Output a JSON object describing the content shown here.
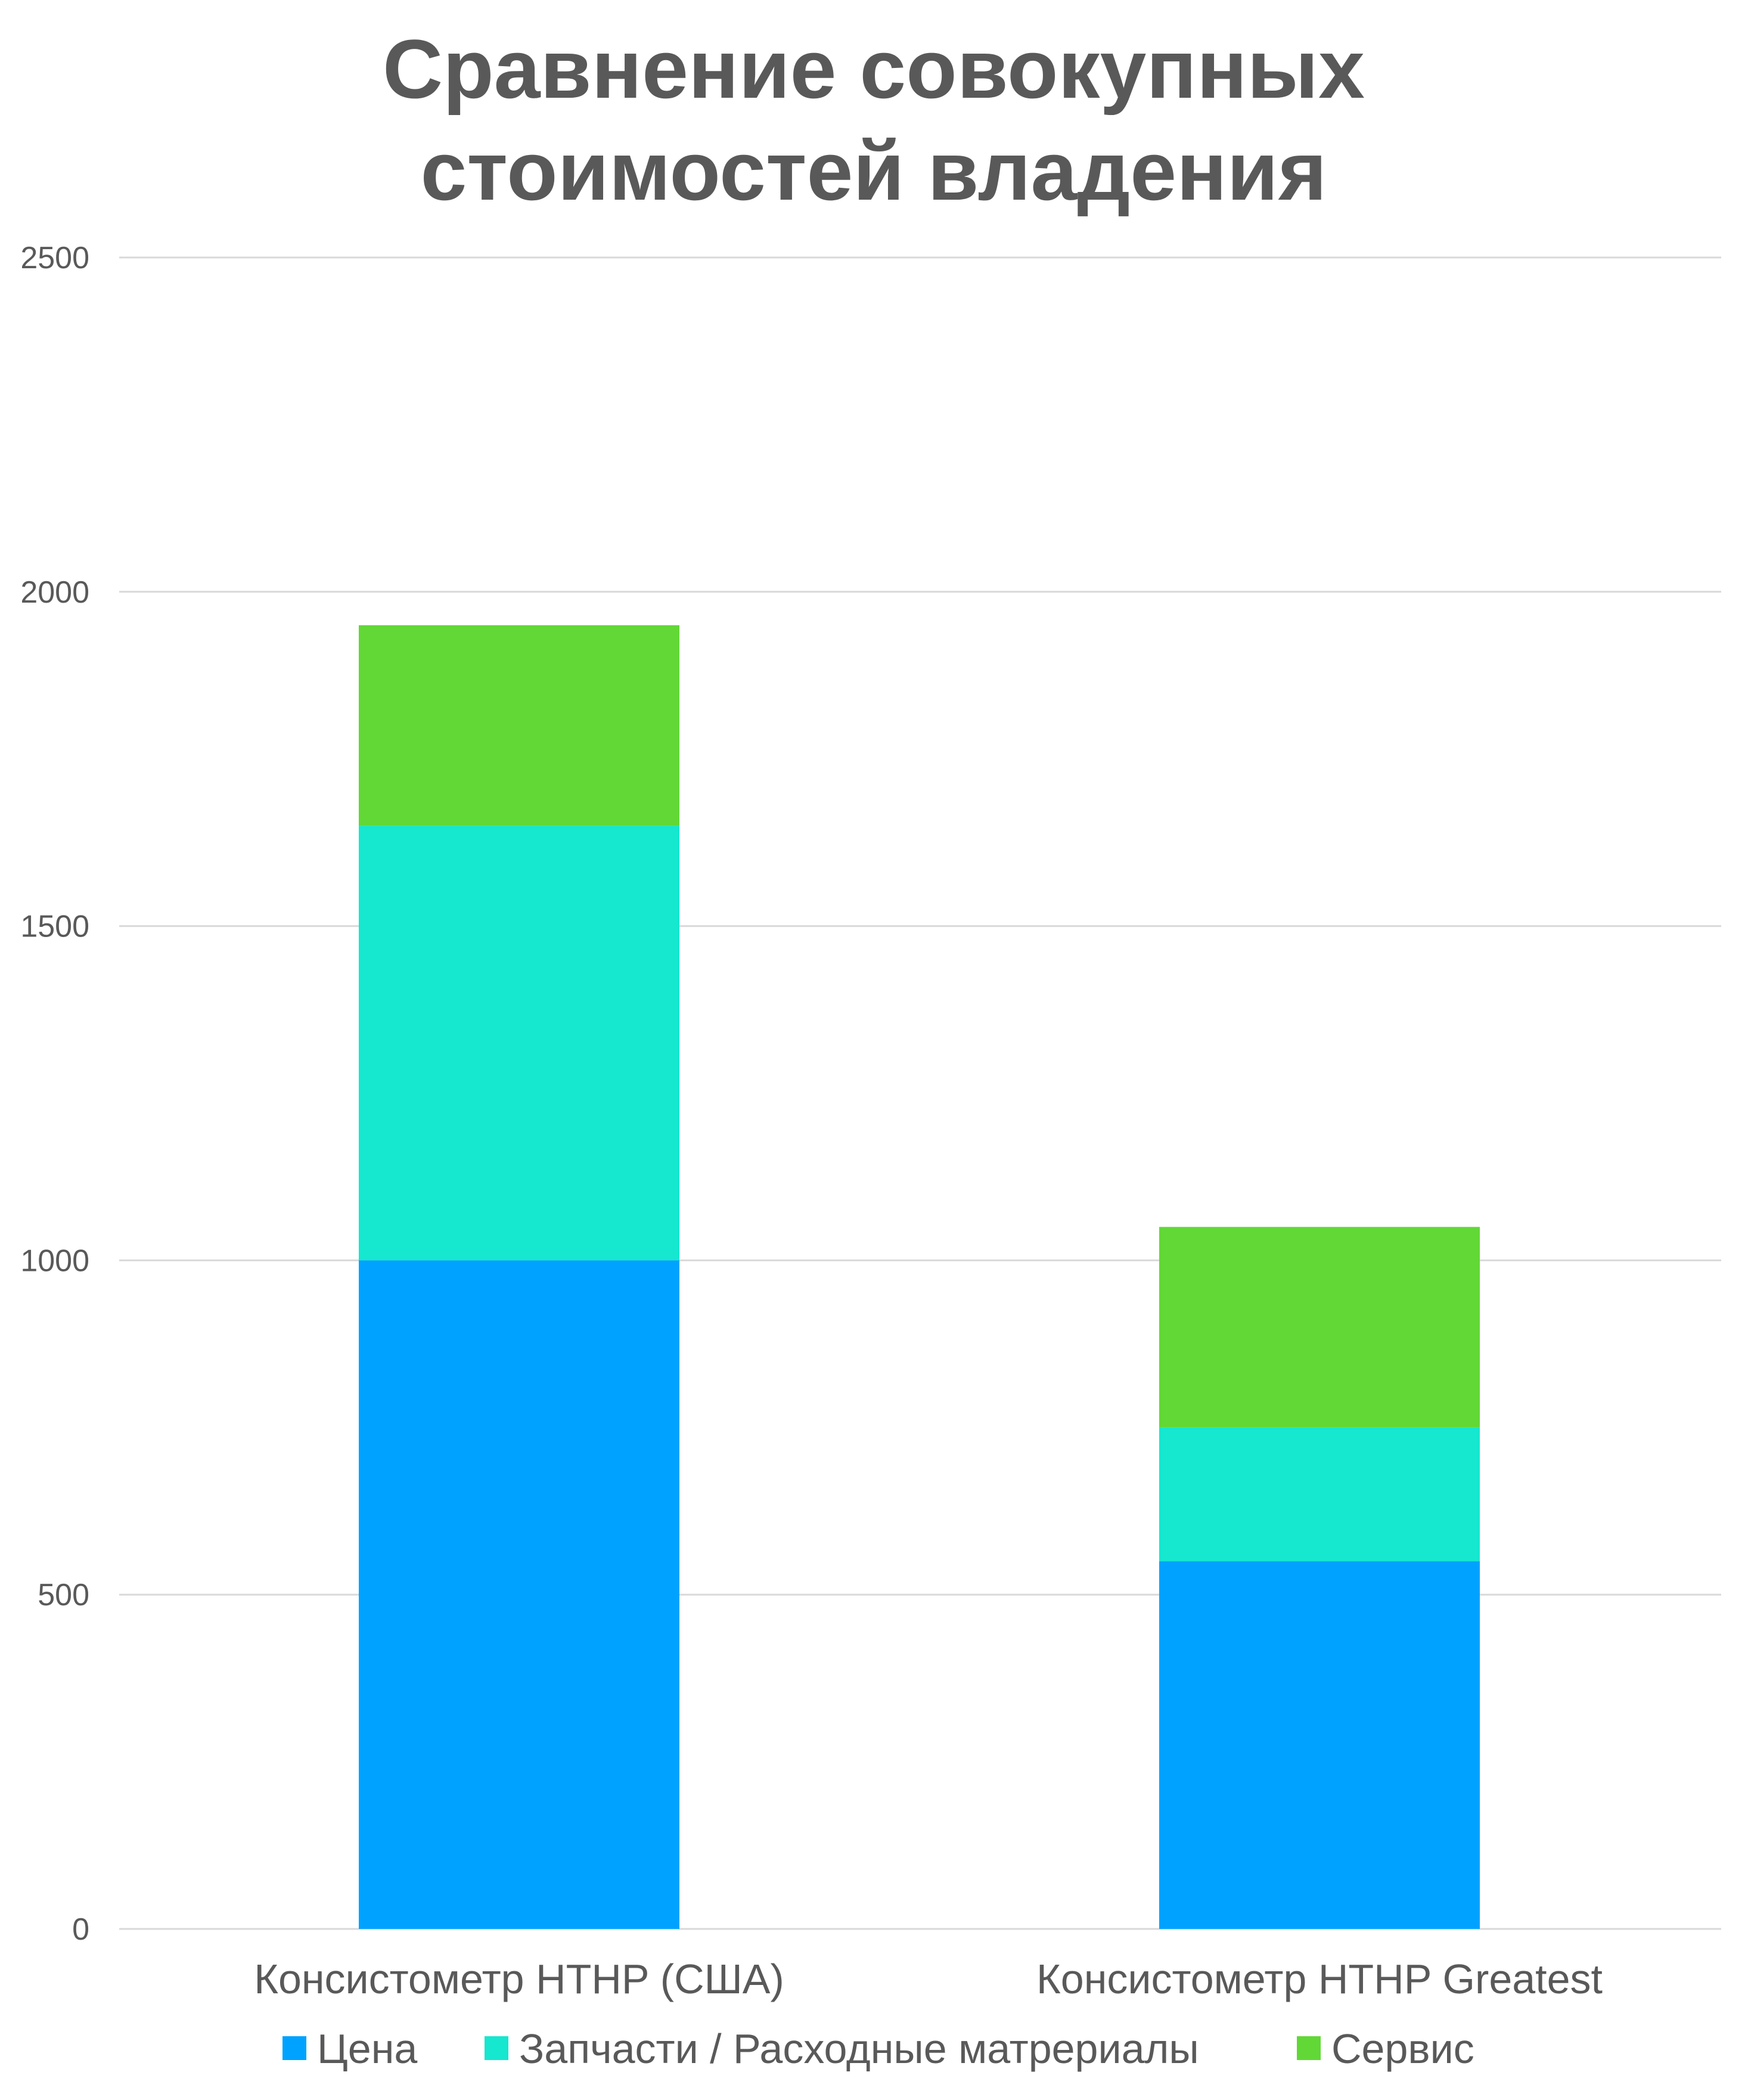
{
  "chart_data": {
    "type": "bar",
    "stacked": true,
    "title_lines": [
      "Сравнение совокупных",
      "стоимостей владения"
    ],
    "categories": [
      "Консистометр HTHP (США)",
      "Консистометр HTHP Greatest"
    ],
    "series": [
      {
        "name": "Цена",
        "values": [
          1000,
          550
        ],
        "color": "#00A2FF"
      },
      {
        "name": "Запчасти / Расходные матрериалы",
        "values": [
          650,
          200
        ],
        "color": "#16E7CF"
      },
      {
        "name": "Сервис",
        "values": [
          300,
          300
        ],
        "color": "#61D836"
      }
    ],
    "y_ticks": [
      0,
      500,
      1000,
      1500,
      2000,
      2500
    ],
    "ylim": [
      0,
      2500
    ],
    "grid": true,
    "legend_position": "bottom",
    "colors": {
      "title": "#595959",
      "tick_label": "#595959",
      "category_label": "#595959",
      "legend_text": "#595959",
      "grid": "#D9D9D9"
    }
  }
}
